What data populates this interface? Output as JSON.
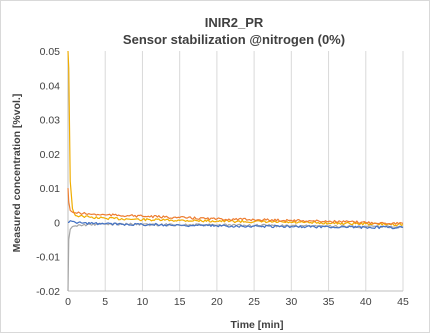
{
  "chart_data": {
    "type": "line",
    "title_lines": [
      "INIR2_PR",
      "Sensor stabilization @nitrogen (0%)"
    ],
    "xlabel": "Time [min]",
    "ylabel": "Measured concentration [%vol.]",
    "xlim": [
      0,
      45
    ],
    "ylim": [
      -0.02,
      0.05
    ],
    "x_ticks": [
      0,
      5,
      10,
      15,
      20,
      25,
      30,
      35,
      40,
      45
    ],
    "y_ticks": [
      0.05,
      0.04,
      0.03,
      0.02,
      0.01,
      0,
      -0.01,
      -0.02
    ],
    "x_tick_labels": [
      "0",
      "5",
      "10",
      "15",
      "20",
      "25",
      "30",
      "35",
      "40",
      "45"
    ],
    "y_tick_labels": [
      "0.05",
      "0.04",
      "0.03",
      "0.02",
      "0.01",
      "0",
      "-0.01",
      "-0.02"
    ],
    "grid": "vertical",
    "legend": "none",
    "series": [
      {
        "color": "#f0ad00",
        "x": [
          0,
          0.1,
          0.3,
          0.6,
          1,
          2,
          3,
          5,
          8,
          10,
          15,
          20,
          25,
          30,
          35,
          40,
          45
        ],
        "values": [
          0.05,
          0.045,
          0.012,
          0.004,
          0.002,
          0.0018,
          0.0015,
          0.0012,
          0.001,
          0.0008,
          0.0006,
          0.0004,
          0.0002,
          0.0,
          -0.0002,
          -0.0004,
          -0.0006
        ]
      },
      {
        "color": "#ed7d31",
        "x": [
          0,
          0.1,
          0.3,
          0.6,
          1,
          2,
          3,
          5,
          8,
          10,
          15,
          20,
          25,
          30,
          35,
          40,
          45
        ],
        "values": [
          0.01,
          0.006,
          0.0035,
          0.003,
          0.0028,
          0.0026,
          0.0024,
          0.0022,
          0.002,
          0.0018,
          0.0014,
          0.001,
          0.0008,
          0.0006,
          0.0003,
          0.0,
          -0.0003
        ]
      },
      {
        "color": "#a5a5a5",
        "x": [
          0,
          0.1,
          0.3,
          0.6,
          1,
          2,
          3,
          5,
          8,
          10,
          15,
          20,
          25,
          30,
          35,
          40,
          45
        ],
        "values": [
          -0.02,
          -0.005,
          -0.002,
          -0.0012,
          -0.001,
          -0.0008,
          -0.0006,
          -0.0005,
          -0.0005,
          -0.0006,
          -0.0007,
          -0.0008,
          -0.0009,
          -0.001,
          -0.0011,
          -0.0012,
          -0.0013
        ]
      },
      {
        "color": "#4472c4",
        "x": [
          0,
          0.1,
          0.3,
          0.6,
          1,
          2,
          3,
          5,
          8,
          10,
          15,
          20,
          25,
          30,
          35,
          40,
          45
        ],
        "values": [
          0.0,
          0.0,
          0.0005,
          0.0003,
          0.0,
          -0.0002,
          -0.0003,
          -0.0004,
          -0.0005,
          -0.0006,
          -0.0008,
          -0.001,
          -0.0011,
          -0.0012,
          -0.0013,
          -0.0014,
          -0.0015
        ]
      }
    ]
  }
}
